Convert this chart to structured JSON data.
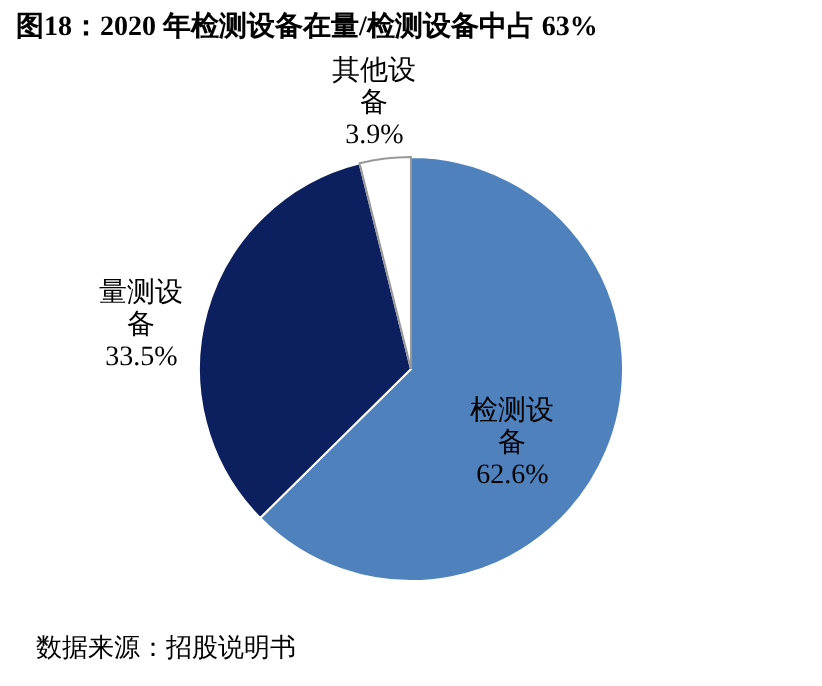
{
  "chart_data": {
    "type": "pie",
    "title": "图18：2020 年检测设备在量/检测设备中占 63%",
    "categories": [
      "检测设备",
      "量测设备",
      "其他设备"
    ],
    "values": [
      62.6,
      33.5,
      3.9
    ],
    "colors": [
      "#4f81bd",
      "#0c1f5e",
      "#ffffff"
    ],
    "value_labels": [
      "62.6%",
      "33.5%",
      "3.9%"
    ],
    "legend": false,
    "annotations": [
      "数据来源：招股说明书"
    ]
  }
}
